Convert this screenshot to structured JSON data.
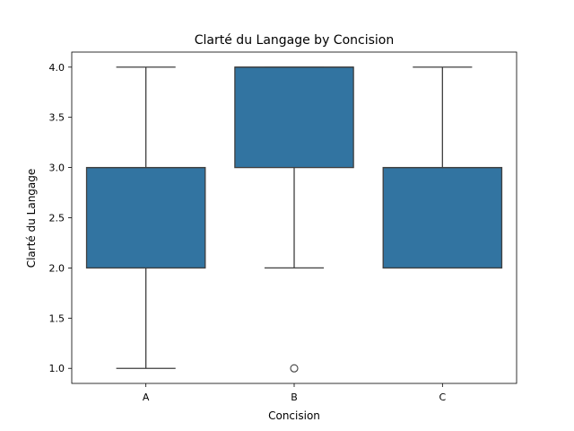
{
  "chart_data": {
    "type": "box",
    "title": "Clarté du Langage by Concision",
    "xlabel": "Concision",
    "ylabel": "Clarté du Langage",
    "categories": [
      "A",
      "B",
      "C"
    ],
    "ylim": [
      0.85,
      4.15
    ],
    "yticks": [
      "1.0",
      "1.5",
      "2.0",
      "2.5",
      "3.0",
      "3.5",
      "4.0"
    ],
    "grid": false,
    "boxes": [
      {
        "category": "A",
        "whisker_low": 1.0,
        "q1": 2.0,
        "median": 3.0,
        "q3": 3.0,
        "whisker_high": 4.0,
        "outliers": []
      },
      {
        "category": "B",
        "whisker_low": 2.0,
        "q1": 3.0,
        "median": 4.0,
        "q3": 4.0,
        "whisker_high": 4.0,
        "outliers": [
          1.0
        ]
      },
      {
        "category": "C",
        "whisker_low": 2.0,
        "q1": 2.0,
        "median": 3.0,
        "q3": 3.0,
        "whisker_high": 4.0,
        "outliers": []
      }
    ],
    "colors": {
      "box_fill": "#3274a1",
      "line": "#3f3f3f"
    }
  }
}
